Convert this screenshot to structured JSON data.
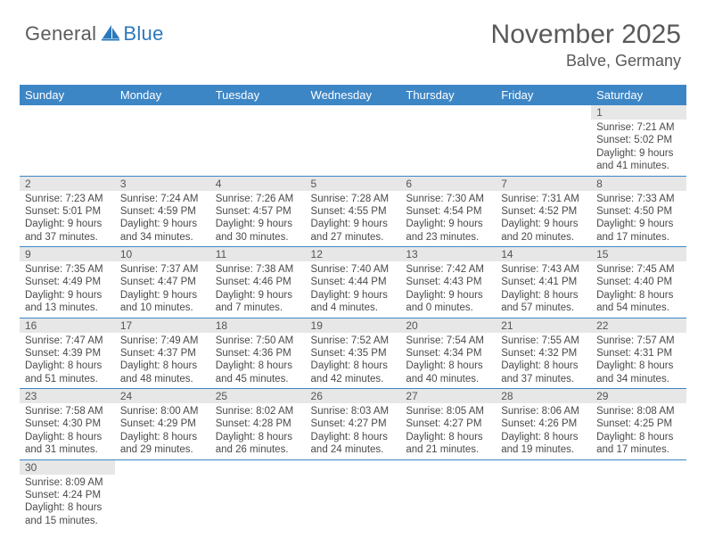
{
  "brand": {
    "part1": "General",
    "part2": "Blue"
  },
  "title": "November 2025",
  "location": "Balve, Germany",
  "colors": {
    "header_bg": "#3d86c6",
    "header_fg": "#ffffff",
    "daynum_bg": "#e7e7e7",
    "row_border": "#3d86c6",
    "text": "#4a4a4a",
    "title_color": "#595959",
    "brand_gray": "#5c5c5c",
    "brand_blue": "#2b78bd"
  },
  "weekdays": [
    "Sunday",
    "Monday",
    "Tuesday",
    "Wednesday",
    "Thursday",
    "Friday",
    "Saturday"
  ],
  "weeks": [
    [
      null,
      null,
      null,
      null,
      null,
      null,
      {
        "n": "1",
        "sr": "Sunrise: 7:21 AM",
        "ss": "Sunset: 5:02 PM",
        "d1": "Daylight: 9 hours",
        "d2": "and 41 minutes."
      }
    ],
    [
      {
        "n": "2",
        "sr": "Sunrise: 7:23 AM",
        "ss": "Sunset: 5:01 PM",
        "d1": "Daylight: 9 hours",
        "d2": "and 37 minutes."
      },
      {
        "n": "3",
        "sr": "Sunrise: 7:24 AM",
        "ss": "Sunset: 4:59 PM",
        "d1": "Daylight: 9 hours",
        "d2": "and 34 minutes."
      },
      {
        "n": "4",
        "sr": "Sunrise: 7:26 AM",
        "ss": "Sunset: 4:57 PM",
        "d1": "Daylight: 9 hours",
        "d2": "and 30 minutes."
      },
      {
        "n": "5",
        "sr": "Sunrise: 7:28 AM",
        "ss": "Sunset: 4:55 PM",
        "d1": "Daylight: 9 hours",
        "d2": "and 27 minutes."
      },
      {
        "n": "6",
        "sr": "Sunrise: 7:30 AM",
        "ss": "Sunset: 4:54 PM",
        "d1": "Daylight: 9 hours",
        "d2": "and 23 minutes."
      },
      {
        "n": "7",
        "sr": "Sunrise: 7:31 AM",
        "ss": "Sunset: 4:52 PM",
        "d1": "Daylight: 9 hours",
        "d2": "and 20 minutes."
      },
      {
        "n": "8",
        "sr": "Sunrise: 7:33 AM",
        "ss": "Sunset: 4:50 PM",
        "d1": "Daylight: 9 hours",
        "d2": "and 17 minutes."
      }
    ],
    [
      {
        "n": "9",
        "sr": "Sunrise: 7:35 AM",
        "ss": "Sunset: 4:49 PM",
        "d1": "Daylight: 9 hours",
        "d2": "and 13 minutes."
      },
      {
        "n": "10",
        "sr": "Sunrise: 7:37 AM",
        "ss": "Sunset: 4:47 PM",
        "d1": "Daylight: 9 hours",
        "d2": "and 10 minutes."
      },
      {
        "n": "11",
        "sr": "Sunrise: 7:38 AM",
        "ss": "Sunset: 4:46 PM",
        "d1": "Daylight: 9 hours",
        "d2": "and 7 minutes."
      },
      {
        "n": "12",
        "sr": "Sunrise: 7:40 AM",
        "ss": "Sunset: 4:44 PM",
        "d1": "Daylight: 9 hours",
        "d2": "and 4 minutes."
      },
      {
        "n": "13",
        "sr": "Sunrise: 7:42 AM",
        "ss": "Sunset: 4:43 PM",
        "d1": "Daylight: 9 hours",
        "d2": "and 0 minutes."
      },
      {
        "n": "14",
        "sr": "Sunrise: 7:43 AM",
        "ss": "Sunset: 4:41 PM",
        "d1": "Daylight: 8 hours",
        "d2": "and 57 minutes."
      },
      {
        "n": "15",
        "sr": "Sunrise: 7:45 AM",
        "ss": "Sunset: 4:40 PM",
        "d1": "Daylight: 8 hours",
        "d2": "and 54 minutes."
      }
    ],
    [
      {
        "n": "16",
        "sr": "Sunrise: 7:47 AM",
        "ss": "Sunset: 4:39 PM",
        "d1": "Daylight: 8 hours",
        "d2": "and 51 minutes."
      },
      {
        "n": "17",
        "sr": "Sunrise: 7:49 AM",
        "ss": "Sunset: 4:37 PM",
        "d1": "Daylight: 8 hours",
        "d2": "and 48 minutes."
      },
      {
        "n": "18",
        "sr": "Sunrise: 7:50 AM",
        "ss": "Sunset: 4:36 PM",
        "d1": "Daylight: 8 hours",
        "d2": "and 45 minutes."
      },
      {
        "n": "19",
        "sr": "Sunrise: 7:52 AM",
        "ss": "Sunset: 4:35 PM",
        "d1": "Daylight: 8 hours",
        "d2": "and 42 minutes."
      },
      {
        "n": "20",
        "sr": "Sunrise: 7:54 AM",
        "ss": "Sunset: 4:34 PM",
        "d1": "Daylight: 8 hours",
        "d2": "and 40 minutes."
      },
      {
        "n": "21",
        "sr": "Sunrise: 7:55 AM",
        "ss": "Sunset: 4:32 PM",
        "d1": "Daylight: 8 hours",
        "d2": "and 37 minutes."
      },
      {
        "n": "22",
        "sr": "Sunrise: 7:57 AM",
        "ss": "Sunset: 4:31 PM",
        "d1": "Daylight: 8 hours",
        "d2": "and 34 minutes."
      }
    ],
    [
      {
        "n": "23",
        "sr": "Sunrise: 7:58 AM",
        "ss": "Sunset: 4:30 PM",
        "d1": "Daylight: 8 hours",
        "d2": "and 31 minutes."
      },
      {
        "n": "24",
        "sr": "Sunrise: 8:00 AM",
        "ss": "Sunset: 4:29 PM",
        "d1": "Daylight: 8 hours",
        "d2": "and 29 minutes."
      },
      {
        "n": "25",
        "sr": "Sunrise: 8:02 AM",
        "ss": "Sunset: 4:28 PM",
        "d1": "Daylight: 8 hours",
        "d2": "and 26 minutes."
      },
      {
        "n": "26",
        "sr": "Sunrise: 8:03 AM",
        "ss": "Sunset: 4:27 PM",
        "d1": "Daylight: 8 hours",
        "d2": "and 24 minutes."
      },
      {
        "n": "27",
        "sr": "Sunrise: 8:05 AM",
        "ss": "Sunset: 4:27 PM",
        "d1": "Daylight: 8 hours",
        "d2": "and 21 minutes."
      },
      {
        "n": "28",
        "sr": "Sunrise: 8:06 AM",
        "ss": "Sunset: 4:26 PM",
        "d1": "Daylight: 8 hours",
        "d2": "and 19 minutes."
      },
      {
        "n": "29",
        "sr": "Sunrise: 8:08 AM",
        "ss": "Sunset: 4:25 PM",
        "d1": "Daylight: 8 hours",
        "d2": "and 17 minutes."
      }
    ],
    [
      {
        "n": "30",
        "sr": "Sunrise: 8:09 AM",
        "ss": "Sunset: 4:24 PM",
        "d1": "Daylight: 8 hours",
        "d2": "and 15 minutes."
      },
      null,
      null,
      null,
      null,
      null,
      null
    ]
  ]
}
